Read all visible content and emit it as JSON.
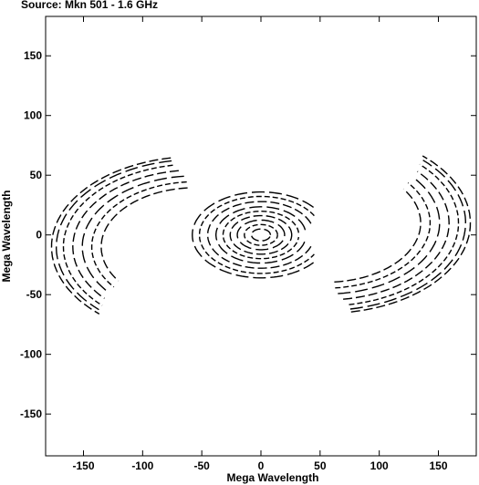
{
  "chart_data": {
    "type": "scatter",
    "title": "Source: Mkn 501 - 1.6 GHz",
    "xlabel": "Mega Wavelength",
    "ylabel": "Mega Wavelength",
    "xlim": [
      -182,
      182
    ],
    "ylim": [
      -185,
      183
    ],
    "xticks": [
      -150,
      -100,
      -50,
      0,
      50,
      100,
      150
    ],
    "yticks": [
      -150,
      -100,
      -50,
      0,
      50,
      100,
      150
    ],
    "grid": false,
    "legend": "none",
    "line_color": "#000000",
    "description_series": [
      {
        "group": "short-baselines",
        "arcs": [
          {
            "r": 8,
            "a0": 0,
            "a1": 360
          },
          {
            "r": 14,
            "a0": 0,
            "a1": 360
          },
          {
            "r": 20,
            "a0": 0,
            "a1": 360
          },
          {
            "r": 26,
            "a0": 0,
            "a1": 360
          },
          {
            "r": 32,
            "a0": 5,
            "a1": 355
          },
          {
            "r": 38,
            "a0": 10,
            "a1": 350
          },
          {
            "r": 45,
            "a0": 20,
            "a1": 340
          },
          {
            "r": 52,
            "a0": 30,
            "a1": 330
          },
          {
            "r": 58,
            "a0": 40,
            "a1": 320
          }
        ]
      },
      {
        "group": "long-baselines-upper-left",
        "center": [
          -55,
          -10
        ],
        "arcs": [
          {
            "r": 80,
            "a0": 95,
            "a1": 215
          },
          {
            "r": 88,
            "a0": 95,
            "a1": 218
          },
          {
            "r": 96,
            "a0": 96,
            "a1": 220
          },
          {
            "r": 104,
            "a0": 98,
            "a1": 222
          },
          {
            "r": 112,
            "a0": 100,
            "a1": 225
          },
          {
            "r": 118,
            "a0": 100,
            "a1": 226
          },
          {
            "r": 122,
            "a0": 100,
            "a1": 228
          }
        ]
      },
      {
        "group": "long-baselines-lower-right",
        "center": [
          55,
          10
        ],
        "arcs": [
          {
            "r": 80,
            "a0": 275,
            "a1": 395
          },
          {
            "r": 88,
            "a0": 275,
            "a1": 398
          },
          {
            "r": 96,
            "a0": 276,
            "a1": 400
          },
          {
            "r": 104,
            "a0": 278,
            "a1": 402
          },
          {
            "r": 112,
            "a0": 280,
            "a1": 405
          },
          {
            "r": 118,
            "a0": 280,
            "a1": 406
          },
          {
            "r": 122,
            "a0": 280,
            "a1": 408
          }
        ]
      }
    ]
  }
}
